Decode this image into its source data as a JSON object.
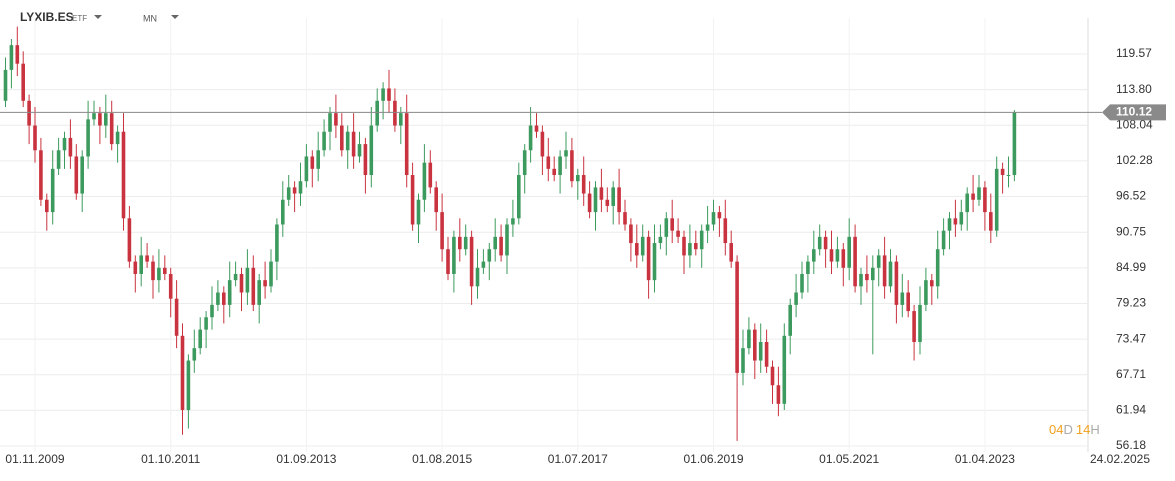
{
  "header": {
    "symbol": "LYXIB.ES",
    "kind": "ETF",
    "interval": "MN"
  },
  "chart_data": {
    "type": "candlestick",
    "up_color": "#3d9a5e",
    "down_color": "#c9333f",
    "grid": true,
    "ylim": [
      55.21,
      125.39
    ],
    "yticks": [
      119.57,
      {
        "value": 113.8,
        "label": "113.80"
      },
      108.04,
      102.28,
      96.52,
      90.75,
      84.99,
      79.23,
      73.47,
      67.71,
      61.94,
      56.18
    ],
    "xticks": [
      {
        "value": 5,
        "label": "01.11.2009"
      },
      {
        "value": 28,
        "label": "01.10.2011"
      },
      {
        "value": 51,
        "label": "01.09.2013"
      },
      {
        "value": 74,
        "label": "01.08.2015"
      },
      {
        "value": 97,
        "label": "01.07.2017"
      },
      {
        "value": 120,
        "label": "01.06.2019"
      },
      {
        "value": 143,
        "label": "01.05.2021"
      },
      {
        "value": 166,
        "label": "01.04.2023"
      }
    ],
    "current_date": "24.02.2025",
    "countdown": {
      "days": "04",
      "days_unit": "D",
      "hours": "14",
      "hours_unit": "H"
    },
    "open": [
      112,
      117,
      121,
      118,
      112,
      108,
      104,
      96,
      94,
      101,
      104,
      106,
      103,
      97,
      103,
      109,
      110,
      108,
      110,
      105,
      107,
      93,
      86,
      84,
      87,
      86,
      83,
      85,
      84,
      80,
      74,
      62,
      70,
      72,
      75,
      77,
      79,
      81,
      79,
      83,
      84,
      81,
      85,
      79,
      83,
      82,
      86,
      92,
      96,
      98,
      97,
      99,
      103,
      101,
      104,
      107,
      110,
      108,
      104,
      107,
      103,
      105,
      100,
      108,
      112,
      114,
      112,
      108,
      110,
      100,
      92,
      96,
      102,
      98,
      94,
      88,
      84,
      90,
      88,
      90,
      82,
      85,
      86,
      88,
      90,
      87,
      92,
      93,
      100,
      104,
      108,
      107,
      103,
      101,
      100,
      103,
      104,
      99,
      100,
      97,
      94,
      98,
      96,
      95,
      98,
      94,
      92,
      89,
      87,
      90,
      83,
      89,
      90,
      93,
      91,
      90,
      87,
      89,
      88,
      91,
      92,
      94,
      93,
      89,
      86,
      68,
      72,
      75,
      70,
      73,
      69,
      66,
      63,
      74,
      79,
      81,
      84,
      86,
      88,
      90,
      88,
      86,
      88,
      85,
      90,
      82,
      84,
      83,
      85,
      87,
      82,
      86,
      79,
      81,
      78,
      73,
      79,
      83,
      82,
      88,
      91,
      93,
      92,
      94,
      97,
      96,
      98,
      94,
      91,
      101,
      100,
      100
    ],
    "high": [
      119,
      122,
      124,
      120,
      113,
      111,
      106,
      97,
      104,
      106,
      107,
      109,
      105,
      104,
      112,
      112,
      111,
      113,
      112,
      108,
      110,
      95,
      87,
      90,
      89,
      87,
      88,
      87,
      85,
      83,
      76,
      71,
      75,
      77,
      78,
      82,
      83,
      82,
      86,
      86,
      85,
      88,
      87,
      84,
      86,
      88,
      93,
      99,
      100,
      99,
      102,
      105,
      104,
      107,
      109,
      111,
      113,
      110,
      108,
      110,
      107,
      106,
      111,
      114,
      115,
      117,
      114,
      111,
      113,
      102,
      97,
      105,
      104,
      99,
      97,
      90,
      91,
      93,
      92,
      91,
      88,
      88,
      89,
      93,
      92,
      93,
      96,
      102,
      105,
      111,
      110,
      108,
      106,
      103,
      104,
      107,
      106,
      101,
      103,
      99,
      99,
      101,
      98,
      99,
      101,
      96,
      93,
      92,
      92,
      91,
      92,
      92,
      94,
      96,
      93,
      91,
      92,
      91,
      92,
      95,
      96,
      95,
      96,
      91,
      87,
      75,
      77,
      76,
      76,
      75,
      70,
      69,
      76,
      80,
      84,
      86,
      87,
      91,
      92,
      91,
      91,
      90,
      89,
      93,
      92,
      85,
      87,
      87,
      88,
      90,
      88,
      87,
      84,
      83,
      79,
      82,
      85,
      84,
      91,
      93,
      94,
      96,
      96,
      98,
      100,
      100,
      99,
      97,
      103,
      102,
      103,
      110.5
    ],
    "low": [
      111,
      114,
      116,
      111,
      105,
      102,
      95,
      91,
      92,
      100,
      101,
      101,
      96,
      94,
      101,
      108,
      105,
      106,
      104,
      102,
      91,
      85,
      81,
      82,
      85,
      80,
      81,
      83,
      77,
      72,
      58,
      59,
      68,
      71,
      72,
      75,
      78,
      76,
      77,
      82,
      78,
      79,
      78,
      76,
      80,
      81,
      83,
      90,
      95,
      94,
      95,
      98,
      98,
      99,
      103,
      104,
      106,
      103,
      101,
      101,
      102,
      97,
      98,
      107,
      109,
      110,
      107,
      105,
      98,
      91,
      89,
      94,
      97,
      91,
      86,
      83,
      81,
      86,
      87,
      79,
      80,
      84,
      83,
      86,
      86,
      84,
      90,
      92,
      97,
      102,
      106,
      100,
      99,
      99,
      97,
      101,
      98,
      96,
      95,
      93,
      91,
      94,
      94,
      92,
      92,
      91,
      86,
      85,
      86,
      80,
      81,
      88,
      87,
      89,
      89,
      84,
      85,
      87,
      85,
      89,
      91,
      90,
      87,
      85,
      57,
      66,
      71,
      67,
      68,
      68,
      63,
      61,
      62,
      71,
      77,
      80,
      81,
      84,
      87,
      85,
      84,
      85,
      82,
      83,
      81,
      79,
      81,
      71,
      82,
      80,
      81,
      76,
      77,
      77,
      70,
      71,
      78,
      79,
      80,
      87,
      88,
      90,
      91,
      91,
      94,
      95,
      91,
      89,
      90,
      97,
      98,
      99
    ],
    "close": [
      117,
      121,
      118,
      112,
      108,
      104,
      96,
      94,
      101,
      104,
      106,
      103,
      97,
      103,
      109,
      110,
      108,
      110,
      105,
      107,
      93,
      86,
      84,
      87,
      86,
      83,
      85,
      84,
      80,
      74,
      62,
      70,
      72,
      75,
      77,
      79,
      81,
      79,
      83,
      84,
      81,
      85,
      79,
      83,
      82,
      86,
      92,
      96,
      98,
      97,
      99,
      103,
      101,
      104,
      107,
      110,
      108,
      104,
      107,
      103,
      105,
      100,
      108,
      112,
      114,
      112,
      108,
      110,
      100,
      92,
      96,
      102,
      98,
      94,
      88,
      84,
      90,
      88,
      90,
      82,
      85,
      86,
      88,
      90,
      87,
      92,
      93,
      100,
      104,
      108,
      107,
      103,
      101,
      100,
      103,
      104,
      99,
      100,
      97,
      94,
      98,
      96,
      95,
      98,
      94,
      92,
      89,
      87,
      90,
      83,
      89,
      90,
      93,
      91,
      90,
      87,
      89,
      88,
      91,
      92,
      94,
      93,
      89,
      86,
      68,
      72,
      75,
      70,
      73,
      69,
      66,
      63,
      74,
      79,
      81,
      84,
      86,
      88,
      90,
      88,
      86,
      88,
      85,
      90,
      82,
      84,
      83,
      85,
      87,
      82,
      86,
      79,
      81,
      78,
      73,
      79,
      83,
      82,
      88,
      91,
      93,
      92,
      94,
      97,
      96,
      98,
      94,
      91,
      101,
      100,
      100,
      110.12
    ]
  }
}
